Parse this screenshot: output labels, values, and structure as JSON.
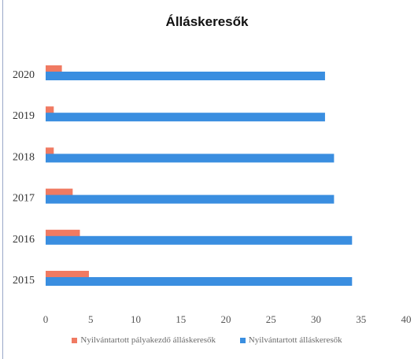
{
  "chart_data": {
    "type": "bar",
    "orientation": "horizontal",
    "title": "Álláskeresők",
    "categories": [
      "2015",
      "2016",
      "2017",
      "2018",
      "2019",
      "2020"
    ],
    "series": [
      {
        "name": "Nyilvántartott pályakezdő álláskeresők",
        "color": "#f07a62",
        "values": [
          4.8,
          3.8,
          3.0,
          0.9,
          0.9,
          1.8
        ]
      },
      {
        "name": "Nyilvántartott álláskeresők",
        "color": "#3a8ee0",
        "values": [
          34.0,
          34.0,
          32.0,
          32.0,
          31.0,
          31.0
        ]
      }
    ],
    "xlim": [
      0,
      40
    ],
    "xticks": [
      "0",
      "5",
      "10",
      "15",
      "20",
      "25",
      "30",
      "35",
      "40"
    ],
    "grid": false,
    "legend_position": "bottom"
  }
}
